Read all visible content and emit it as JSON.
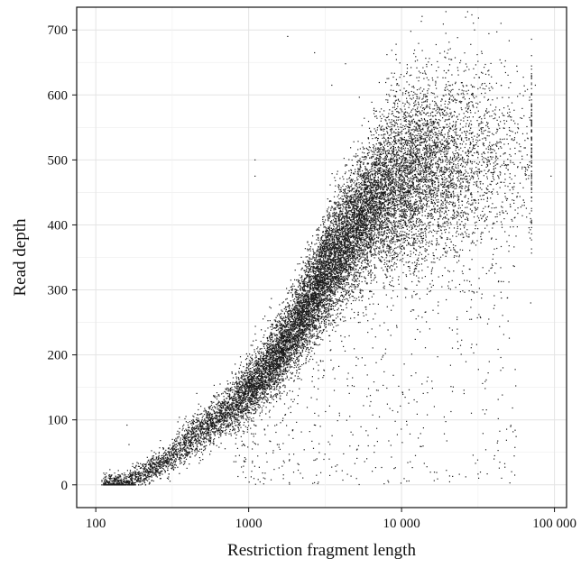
{
  "chart_data": {
    "type": "scatter",
    "title": "",
    "xlabel": "Restriction fragment length",
    "ylabel": "Read depth",
    "x_scale": "log",
    "xlim": [
      75,
      120000
    ],
    "ylim": [
      -35,
      735
    ],
    "x_ticks": [
      {
        "value": 100,
        "label": "100"
      },
      {
        "value": 1000,
        "label": "1000"
      },
      {
        "value": 10000,
        "label": "10 000"
      },
      {
        "value": 100000,
        "label": "100 000"
      }
    ],
    "y_ticks": [
      {
        "value": 0,
        "label": "0"
      },
      {
        "value": 100,
        "label": "100"
      },
      {
        "value": 200,
        "label": "200"
      },
      {
        "value": 300,
        "label": "300"
      },
      {
        "value": 400,
        "label": "400"
      },
      {
        "value": 500,
        "label": "500"
      },
      {
        "value": 600,
        "label": "600"
      },
      {
        "value": 700,
        "label": "700"
      }
    ],
    "grid": true,
    "legend": "none",
    "point_color": "#1a1a1a",
    "trend": [
      {
        "x": 110,
        "y": 0
      },
      {
        "x": 160,
        "y": 5
      },
      {
        "x": 200,
        "y": 18
      },
      {
        "x": 300,
        "y": 45
      },
      {
        "x": 500,
        "y": 85
      },
      {
        "x": 700,
        "y": 112
      },
      {
        "x": 1000,
        "y": 145
      },
      {
        "x": 1500,
        "y": 195
      },
      {
        "x": 2000,
        "y": 240
      },
      {
        "x": 3000,
        "y": 315
      },
      {
        "x": 5000,
        "y": 400
      },
      {
        "x": 7000,
        "y": 440
      },
      {
        "x": 10000,
        "y": 470
      },
      {
        "x": 15000,
        "y": 490
      },
      {
        "x": 20000,
        "y": 500
      },
      {
        "x": 30000,
        "y": 505
      },
      {
        "x": 60000,
        "y": 505
      }
    ],
    "sample_points": [
      {
        "x": 1800,
        "y": 690
      },
      {
        "x": 2700,
        "y": 665
      },
      {
        "x": 11500,
        "y": 698
      },
      {
        "x": 30000,
        "y": 700
      },
      {
        "x": 42000,
        "y": 697
      },
      {
        "x": 1100,
        "y": 500
      },
      {
        "x": 1100,
        "y": 475
      },
      {
        "x": 3500,
        "y": 615
      },
      {
        "x": 4300,
        "y": 648
      },
      {
        "x": 75000,
        "y": 615
      },
      {
        "x": 95000,
        "y": 475
      },
      {
        "x": 160,
        "y": 92
      },
      {
        "x": 165,
        "y": 62
      },
      {
        "x": 55000,
        "y": 15
      },
      {
        "x": 70000,
        "y": 280
      }
    ]
  }
}
